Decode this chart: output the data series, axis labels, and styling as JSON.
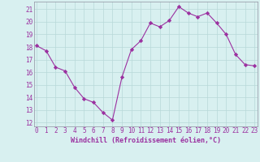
{
  "x": [
    0,
    1,
    2,
    3,
    4,
    5,
    6,
    7,
    8,
    9,
    10,
    11,
    12,
    13,
    14,
    15,
    16,
    17,
    18,
    19,
    20,
    21,
    22,
    23
  ],
  "y": [
    18.1,
    17.7,
    16.4,
    16.1,
    14.8,
    13.9,
    13.6,
    12.8,
    12.2,
    15.6,
    17.8,
    18.5,
    19.9,
    19.6,
    20.1,
    21.2,
    20.7,
    20.4,
    20.7,
    19.9,
    19.0,
    17.4,
    16.6,
    16.5
  ],
  "line_color": "#9B30A0",
  "marker": "D",
  "markersize": 2.2,
  "linewidth": 0.8,
  "bg_color": "#D8F0F0",
  "grid_color": "#B8D8D8",
  "xlabel": "Windchill (Refroidissement éolien,°C)",
  "xlabel_color": "#9B30A0",
  "tick_color": "#9B30A0",
  "yticks": [
    12,
    13,
    14,
    15,
    16,
    17,
    18,
    19,
    20,
    21
  ],
  "xticks": [
    0,
    1,
    2,
    3,
    4,
    5,
    6,
    7,
    8,
    9,
    10,
    11,
    12,
    13,
    14,
    15,
    16,
    17,
    18,
    19,
    20,
    21,
    22,
    23
  ],
  "ylim": [
    11.7,
    21.6
  ],
  "xlim": [
    -0.3,
    23.3
  ],
  "tick_fontsize": 5.5,
  "xlabel_fontsize": 6.0
}
